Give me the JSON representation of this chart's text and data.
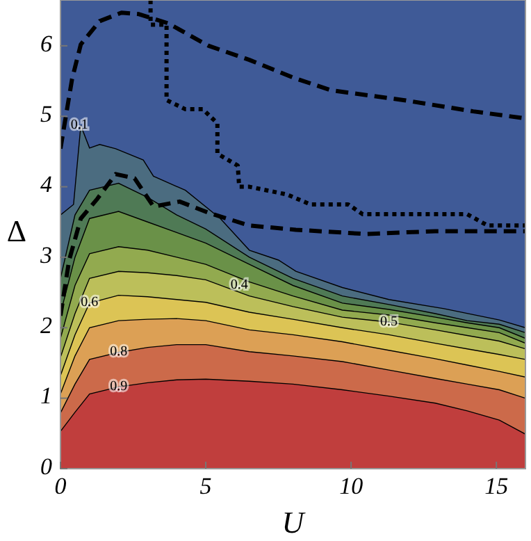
{
  "chart_data": {
    "type": "area",
    "xlabel": "U",
    "ylabel": "Δ",
    "xlim": [
      0,
      16
    ],
    "ylim": [
      0,
      6.65
    ],
    "xticks": [
      0,
      5,
      10,
      15
    ],
    "yticks": [
      0,
      1,
      2,
      3,
      4,
      5,
      6
    ],
    "x": [
      0,
      0.5,
      1,
      2,
      3,
      4,
      5,
      6.5,
      8,
      9.7,
      11.3,
      12.9,
      14,
      15.1,
      16
    ],
    "bands": [
      {
        "axis": "y",
        "from": 0,
        "to": 6.65,
        "color": "#3f5a97"
      }
    ],
    "series": [
      {
        "color": "#4b6c80",
        "x": [
          0,
          0.45,
          0.7,
          1,
          1.35,
          1.9,
          2.85,
          3.2,
          4.3,
          5.5,
          6.5,
          7.5,
          8.1,
          9.7,
          11.3,
          13.2,
          15.1,
          16
        ],
        "values": [
          3.6,
          3.75,
          4.87,
          4.55,
          4.6,
          4.54,
          4.38,
          4.15,
          3.95,
          3.55,
          3.1,
          2.96,
          2.8,
          2.57,
          2.4,
          2.27,
          2.11,
          2.0
        ]
      },
      {
        "color": "#4f7a55",
        "values": [
          2.7,
          3.6,
          3.95,
          4.05,
          3.85,
          3.6,
          3.4,
          3.0,
          2.7,
          2.45,
          2.33,
          2.2,
          2.1,
          2.05,
          1.93
        ]
      },
      {
        "color": "#6a9148",
        "values": [
          2.2,
          3.0,
          3.55,
          3.65,
          3.5,
          3.35,
          3.2,
          2.9,
          2.6,
          2.35,
          2.26,
          2.15,
          2.07,
          2.0,
          1.85
        ]
      },
      {
        "color": "#92aa4f",
        "values": [
          1.85,
          2.6,
          3.05,
          3.15,
          3.1,
          3.0,
          2.9,
          2.65,
          2.45,
          2.25,
          2.18,
          2.07,
          2.0,
          1.93,
          1.78
        ]
      },
      {
        "color": "#bcbf5a",
        "values": [
          1.58,
          2.2,
          2.7,
          2.8,
          2.78,
          2.74,
          2.68,
          2.45,
          2.3,
          2.15,
          2.08,
          1.97,
          1.89,
          1.81,
          1.7
        ]
      },
      {
        "color": "#dcc455",
        "values": [
          1.32,
          1.9,
          2.35,
          2.46,
          2.44,
          2.4,
          2.36,
          2.22,
          2.12,
          2.0,
          1.9,
          1.78,
          1.7,
          1.62,
          1.55
        ]
      },
      {
        "color": "#dca055",
        "values": [
          1.06,
          1.6,
          2.0,
          2.1,
          2.12,
          2.13,
          2.1,
          1.97,
          1.9,
          1.8,
          1.68,
          1.56,
          1.47,
          1.38,
          1.3
        ]
      },
      {
        "color": "#cc6a4a",
        "values": [
          0.79,
          1.2,
          1.55,
          1.65,
          1.72,
          1.76,
          1.76,
          1.66,
          1.6,
          1.52,
          1.4,
          1.28,
          1.2,
          1.12,
          1.0
        ]
      },
      {
        "color": "#c03e3d",
        "values": [
          0.53,
          0.8,
          1.06,
          1.16,
          1.22,
          1.26,
          1.27,
          1.24,
          1.2,
          1.12,
          1.03,
          0.93,
          0.82,
          0.69,
          0.49
        ]
      },
      {
        "type": "line",
        "line_style": "dashed",
        "color": "#000000",
        "x": [
          0,
          0.4,
          0.7,
          1.35,
          2.1,
          2.7,
          3.7,
          5.1,
          6.5,
          8,
          9.3,
          11.8,
          14.2,
          16
        ],
        "values": [
          4.54,
          5.53,
          6.02,
          6.35,
          6.47,
          6.45,
          6.32,
          6.0,
          5.8,
          5.55,
          5.37,
          5.23,
          5.07,
          4.97
        ]
      },
      {
        "type": "line",
        "line_style": "dashed",
        "color": "#000000",
        "x": [
          0,
          0.3,
          0.7,
          1.27,
          1.9,
          2.55,
          3.2,
          4.1,
          5.1,
          6.5,
          8.1,
          10.5,
          12.9,
          16
        ],
        "values": [
          2.17,
          2.96,
          3.55,
          3.83,
          4.18,
          4.12,
          3.72,
          3.79,
          3.63,
          3.45,
          3.39,
          3.33,
          3.37,
          3.37
        ]
      },
      {
        "type": "line",
        "line_style": "dotted",
        "color": "#000000",
        "x": [
          3.1,
          3.1,
          3.65,
          3.65,
          4.3,
          4.9,
          5.4,
          5.4,
          6.1,
          6.15,
          6.5,
          7.8,
          8.6,
          9.9,
          10.4,
          14.0,
          14.7,
          16
        ],
        "values": [
          6.65,
          6.3,
          6.3,
          5.23,
          5.1,
          5.1,
          4.9,
          4.47,
          4.3,
          4.0,
          4.0,
          3.89,
          3.75,
          3.75,
          3.61,
          3.61,
          3.45,
          3.45
        ]
      }
    ],
    "annotations": [
      {
        "text": "0.1",
        "x": 0.65,
        "y": 4.87
      },
      {
        "text": "0.4",
        "x": 6.15,
        "y": 2.6
      },
      {
        "text": "0.5",
        "x": 11.3,
        "y": 2.08
      },
      {
        "text": "0.6",
        "x": 1,
        "y": 2.35
      },
      {
        "text": "0.8",
        "x": 2,
        "y": 1.65
      },
      {
        "text": "0.9",
        "x": 2,
        "y": 1.16
      }
    ]
  }
}
